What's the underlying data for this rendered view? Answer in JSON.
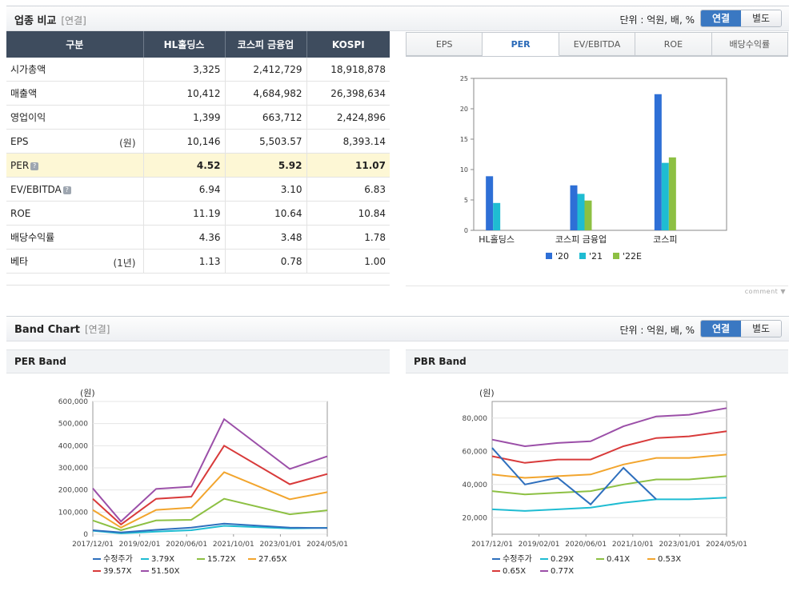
{
  "comparison": {
    "title": "업종 비교",
    "sub": "[연결]",
    "unit": "단위 : 억원, 배, %",
    "toggle": [
      "연결",
      "별도"
    ],
    "headers": [
      "구분",
      "HL홀딩스",
      "코스피 금융업",
      "KOSPI"
    ],
    "rows": [
      {
        "label": "시가총액",
        "unit": "",
        "values": [
          "3,325",
          "2,412,729",
          "18,918,878"
        ]
      },
      {
        "label": "매출액",
        "unit": "",
        "values": [
          "10,412",
          "4,684,982",
          "26,398,634"
        ]
      },
      {
        "label": "영업이익",
        "unit": "",
        "values": [
          "1,399",
          "663,712",
          "2,424,896"
        ]
      },
      {
        "label": "EPS",
        "unit": "(원)",
        "values": [
          "10,146",
          "5,503.57",
          "8,393.14"
        ]
      },
      {
        "label": "PER",
        "unit": "",
        "values": [
          "4.52",
          "5.92",
          "11.07"
        ]
      },
      {
        "label": "EV/EBITDA",
        "unit": "",
        "values": [
          "6.94",
          "3.10",
          "6.83"
        ]
      },
      {
        "label": "ROE",
        "unit": "",
        "values": [
          "11.19",
          "10.64",
          "10.84"
        ]
      },
      {
        "label": "배당수익률",
        "unit": "",
        "values": [
          "4.36",
          "3.48",
          "1.78"
        ]
      },
      {
        "label": "베타",
        "unit": "(1년)",
        "values": [
          "1.13",
          "0.78",
          "1.00"
        ]
      }
    ],
    "tabs": [
      "EPS",
      "PER",
      "EV/EBITDA",
      "ROE",
      "배당수익률"
    ],
    "active_tab": "PER",
    "comment_label": "comment"
  },
  "band": {
    "title": "Band Chart",
    "sub": "[연결]",
    "unit": "단위 : 억원, 배, %",
    "toggle": [
      "연결",
      "별도"
    ]
  },
  "chart_data": [
    {
      "type": "bar",
      "categories": [
        "HL홀딩스",
        "코스피 금융업",
        "코스피"
      ],
      "series": [
        {
          "name": "'20",
          "color": "#2e6fd6",
          "values": [
            8.9,
            7.4,
            22.4
          ]
        },
        {
          "name": "'21",
          "color": "#1fbcd2",
          "values": [
            4.5,
            6.0,
            11.1
          ]
        },
        {
          "name": "'22E",
          "color": "#8dc043",
          "values": [
            null,
            4.9,
            12.0
          ]
        }
      ],
      "ylim": [
        0,
        25
      ],
      "yticks": [
        0,
        5,
        10,
        15,
        20,
        25
      ],
      "grid": false,
      "legend": "bottom"
    },
    {
      "type": "line",
      "title": "PER Band",
      "ylabel": "(원)",
      "ylim": [
        0,
        600000
      ],
      "yticks": [
        0,
        100000,
        200000,
        300000,
        400000,
        500000,
        600000
      ],
      "ytick_labels": [
        "0",
        "100,000",
        "200,000",
        "300,000",
        "400,000",
        "500,000",
        "600,000"
      ],
      "x_labels": [
        "2017/12/01",
        "2019/02/01",
        "2020/06/01",
        "2021/10/01",
        "2023/01/01",
        "2024/05/01"
      ],
      "x": [
        0,
        0.12,
        0.27,
        0.42,
        0.56,
        0.84,
        1.0
      ],
      "series": [
        {
          "name": "수정주가",
          "color": "#2e6fbd",
          "values": [
            18000,
            8000,
            20000,
            30000,
            48000,
            30000,
            28000
          ]
        },
        {
          "name": "3.79X",
          "color": "#1fbcd2",
          "values": [
            16000,
            4000,
            12000,
            18000,
            38000,
            26000,
            29000
          ]
        },
        {
          "name": "15.72X",
          "color": "#8dc043",
          "values": [
            62000,
            18000,
            62000,
            65000,
            160000,
            90000,
            108000
          ]
        },
        {
          "name": "27.65X",
          "color": "#f2a52e",
          "values": [
            110000,
            30000,
            110000,
            120000,
            280000,
            158000,
            190000
          ]
        },
        {
          "name": "39.57X",
          "color": "#d83a3a",
          "values": [
            160000,
            44000,
            160000,
            170000,
            400000,
            226000,
            272000
          ]
        },
        {
          "name": "51.50X",
          "color": "#9b4fa8",
          "values": [
            207000,
            58000,
            205000,
            215000,
            520000,
            295000,
            352000
          ]
        }
      ],
      "legend": "bottom"
    },
    {
      "type": "line",
      "title": "PBR Band",
      "ylabel": "(원)",
      "ylim": [
        10000,
        90000
      ],
      "yticks": [
        20000,
        40000,
        60000,
        80000
      ],
      "ytick_labels": [
        "20,000",
        "40,000",
        "60,000",
        "80,000"
      ],
      "x_labels": [
        "2017/12/01",
        "2019/02/01",
        "2020/06/01",
        "2021/10/01",
        "2023/01/01",
        "2024/05/01"
      ],
      "x": [
        0,
        0.14,
        0.28,
        0.42,
        0.56,
        0.7,
        0.84,
        1.0
      ],
      "series": [
        {
          "name": "수정주가",
          "color": "#2e6fbd",
          "values": [
            62000,
            40000,
            44000,
            28000,
            50000,
            31000,
            null,
            null
          ]
        },
        {
          "name": "0.29X",
          "color": "#1fbcd2",
          "values": [
            25000,
            24000,
            25000,
            26000,
            29000,
            31000,
            31000,
            32000
          ]
        },
        {
          "name": "0.41X",
          "color": "#8dc043",
          "values": [
            36000,
            34000,
            35000,
            36000,
            40000,
            43000,
            43000,
            45000
          ]
        },
        {
          "name": "0.53X",
          "color": "#f2a52e",
          "values": [
            46000,
            44000,
            45000,
            46000,
            52000,
            56000,
            56000,
            58000
          ]
        },
        {
          "name": "0.65X",
          "color": "#d83a3a",
          "values": [
            57000,
            53000,
            55000,
            55000,
            63000,
            68000,
            69000,
            72000
          ]
        },
        {
          "name": "0.77X",
          "color": "#9b4fa8",
          "values": [
            67000,
            63000,
            65000,
            66000,
            75000,
            81000,
            82000,
            86000
          ]
        }
      ],
      "legend": "bottom"
    }
  ]
}
